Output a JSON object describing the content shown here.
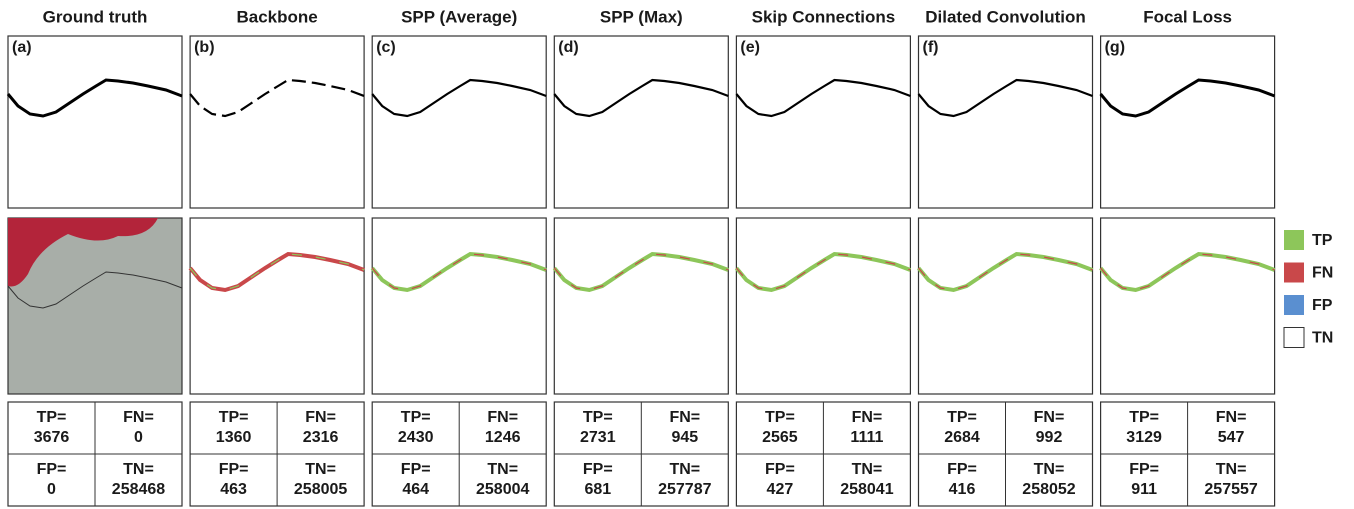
{
  "columns": [
    {
      "title": "Ground truth",
      "panel": "(a)",
      "cells": [
        {
          "label": "TP=",
          "value": 3676
        },
        {
          "label": "FN=",
          "value": 0
        },
        {
          "label": "FP=",
          "value": 0
        },
        {
          "label": "TN=",
          "value": 258468
        }
      ]
    },
    {
      "title": "Backbone",
      "panel": "(b)",
      "cells": [
        {
          "label": "TP=",
          "value": 1360
        },
        {
          "label": "FN=",
          "value": 2316
        },
        {
          "label": "FP=",
          "value": 463
        },
        {
          "label": "TN=",
          "value": 258005
        }
      ]
    },
    {
      "title": "SPP (Average)",
      "panel": "(c)",
      "cells": [
        {
          "label": "TP=",
          "value": 2430
        },
        {
          "label": "FN=",
          "value": 1246
        },
        {
          "label": "FP=",
          "value": 464
        },
        {
          "label": "TN=",
          "value": 258004
        }
      ]
    },
    {
      "title": "SPP (Max)",
      "panel": "(d)",
      "cells": [
        {
          "label": "TP=",
          "value": 2731
        },
        {
          "label": "FN=",
          "value": 945
        },
        {
          "label": "FP=",
          "value": 681
        },
        {
          "label": "TN=",
          "value": 257787
        }
      ]
    },
    {
      "title": "Skip Connections",
      "panel": "(e)",
      "cells": [
        {
          "label": "TP=",
          "value": 2565
        },
        {
          "label": "FN=",
          "value": 1111
        },
        {
          "label": "FP=",
          "value": 427
        },
        {
          "label": "TN=",
          "value": 258041
        }
      ]
    },
    {
      "title": "Dilated Convolution",
      "panel": "(f)",
      "cells": [
        {
          "label": "TP=",
          "value": 2684
        },
        {
          "label": "FN=",
          "value": 992
        },
        {
          "label": "FP=",
          "value": 416
        },
        {
          "label": "TN=",
          "value": 258052
        }
      ]
    },
    {
      "title": "Focal Loss",
      "panel": "(g)",
      "cells": [
        {
          "label": "TP=",
          "value": 3129
        },
        {
          "label": "FN=",
          "value": 547
        },
        {
          "label": "FP=",
          "value": 911
        },
        {
          "label": "TN=",
          "value": 257557
        }
      ]
    }
  ],
  "legend": [
    {
      "label": "TP",
      "color": "#8dc65a"
    },
    {
      "label": "FN",
      "color": "#c9484a"
    },
    {
      "label": "FP",
      "color": "#5a8fd0"
    },
    {
      "label": "TN",
      "color": "#ffffff"
    }
  ]
}
